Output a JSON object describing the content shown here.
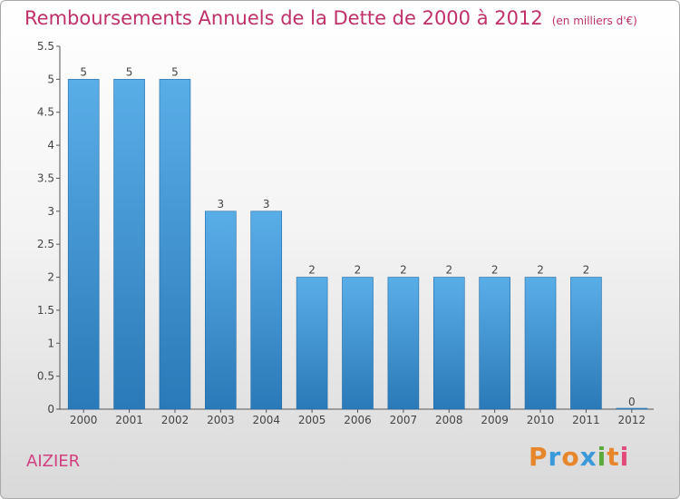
{
  "header": {
    "title": "Remboursements Annuels de la Dette de 2000 à 2012",
    "unit": "(en milliers d'€)"
  },
  "footer": {
    "place": "AIZIER",
    "logo": {
      "text": "Proxiti",
      "colors": [
        "#e8862b",
        "#3a9ad9",
        "#e8862b",
        "#3a9ad9",
        "#5aa93b",
        "#e8862b",
        "#e24a79"
      ]
    }
  },
  "chart_data": {
    "type": "bar",
    "categories": [
      "2000",
      "2001",
      "2002",
      "2003",
      "2004",
      "2005",
      "2006",
      "2007",
      "2008",
      "2009",
      "2010",
      "2011",
      "2012"
    ],
    "values": [
      5,
      5,
      5,
      3,
      3,
      2,
      2,
      2,
      2,
      2,
      2,
      2,
      0
    ],
    "value_labels": [
      "5",
      "5",
      "5",
      "3",
      "3",
      "2",
      "2",
      "2",
      "2",
      "2",
      "2",
      "2",
      "0"
    ],
    "y_ticks": [
      "0",
      "0.5",
      "1",
      "1.5",
      "2",
      "2.5",
      "3",
      "3.5",
      "4",
      "4.5",
      "5",
      "5.5"
    ],
    "ylim": [
      0,
      5.5
    ],
    "bar_color_light": "#5aaee8",
    "bar_color_dark": "#2a79b8"
  }
}
